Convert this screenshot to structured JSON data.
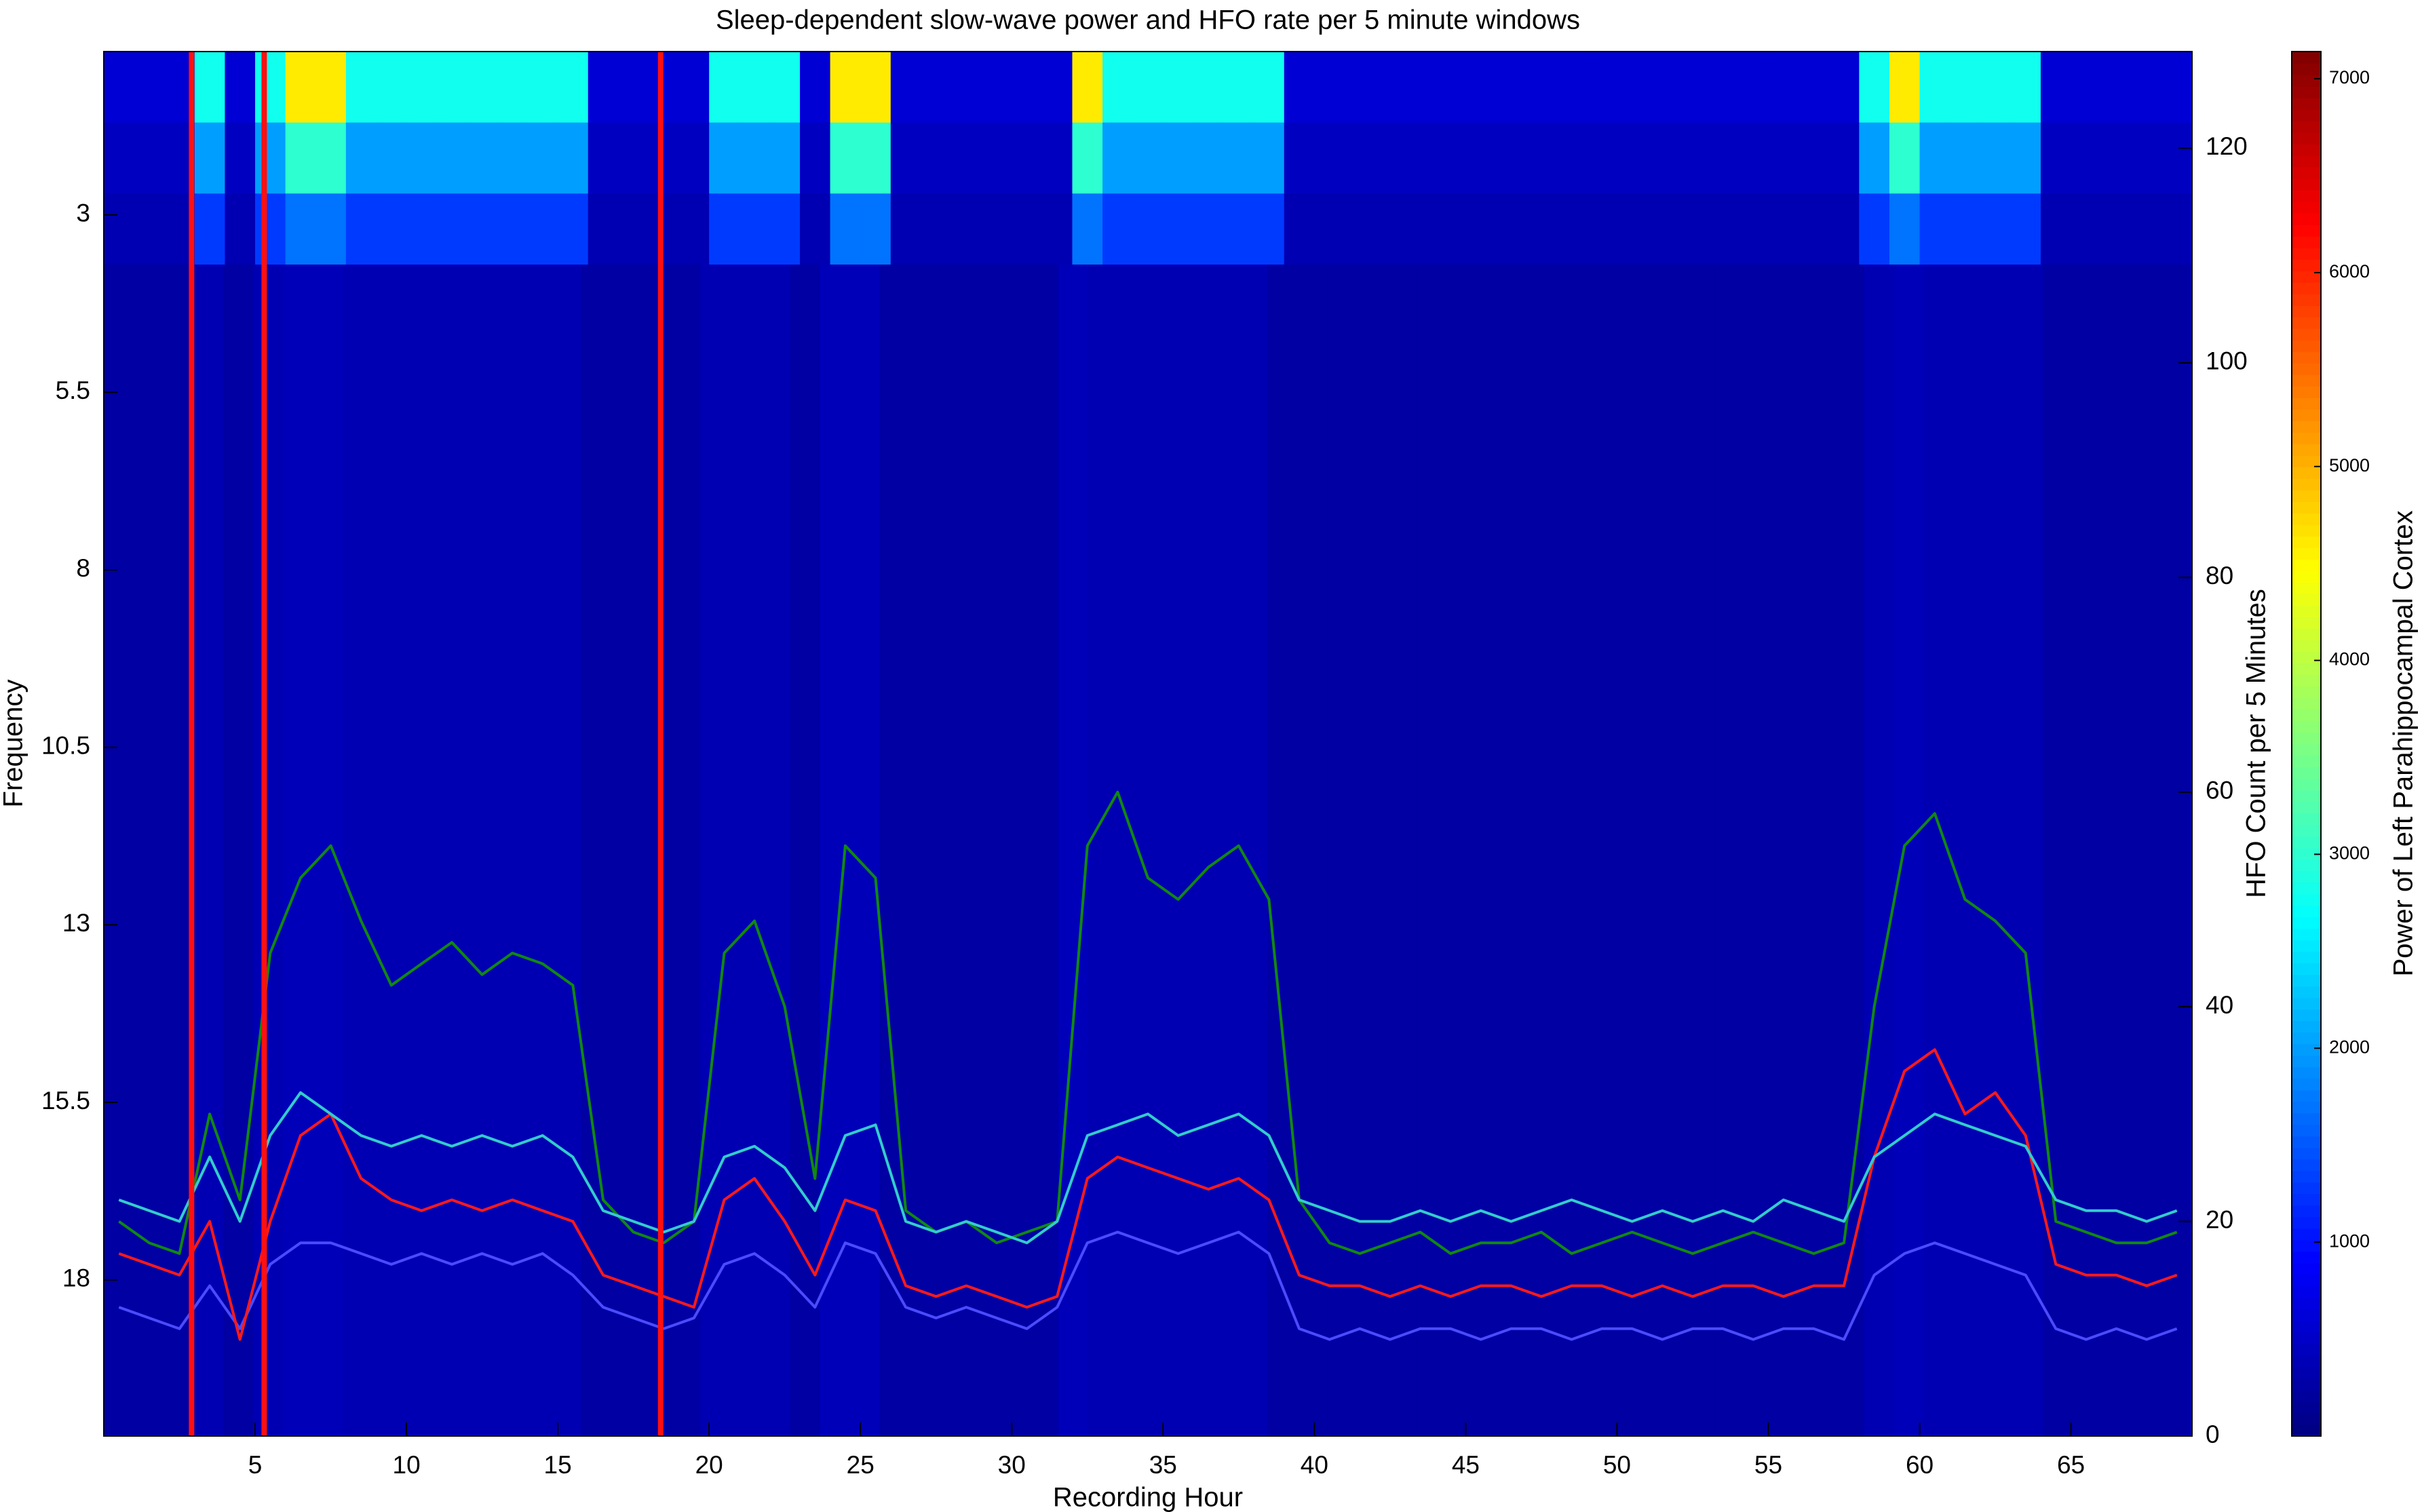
{
  "chart_data": {
    "type": "heatmap",
    "title": "Sleep-dependent slow-wave power and HFO rate per 5 minute windows",
    "xlabel": "Recording Hour",
    "ylabel": "Frequency",
    "y2label": "HFO Count per 5 Minutes",
    "colorbar_label": "Power of Left Parahippocampal Cortex",
    "colormap": "jet",
    "xlim": [
      0,
      69
    ],
    "xticks": [
      5,
      10,
      15,
      20,
      25,
      30,
      35,
      40,
      45,
      50,
      55,
      60,
      65
    ],
    "ylim": [
      0.7,
      20.2
    ],
    "y_reversed": true,
    "yticks": [
      3,
      5.5,
      8,
      10.5,
      13,
      15.5,
      18
    ],
    "y2lim": [
      0,
      129
    ],
    "y2ticks": [
      0,
      20,
      40,
      60,
      80,
      100,
      120
    ],
    "clim": [
      0,
      7140
    ],
    "cticks": [
      1000,
      2000,
      3000,
      4000,
      5000,
      6000,
      7000
    ],
    "heatmap": {
      "y_edges": [
        0.7,
        1.7,
        2.7,
        3.7,
        20.2
      ],
      "z": [
        [
          600,
          600,
          600,
          2800,
          600,
          2800,
          4600,
          4600,
          2800,
          2800,
          2800,
          2800,
          2800,
          2800,
          2800,
          2800,
          600,
          600,
          600,
          600,
          2800,
          2800,
          2800,
          600,
          4600,
          4600,
          600,
          600,
          600,
          600,
          600,
          600,
          4600,
          2800,
          2800,
          2800,
          2800,
          2800,
          2800,
          600,
          600,
          600,
          600,
          600,
          600,
          600,
          600,
          600,
          600,
          600,
          600,
          600,
          600,
          600,
          600,
          600,
          600,
          600,
          2800,
          4600,
          2800,
          2800,
          2800,
          2800,
          600,
          600,
          600,
          600,
          600
        ],
        [
          450,
          450,
          450,
          2000,
          450,
          2000,
          3000,
          3000,
          2000,
          2000,
          2000,
          2000,
          2000,
          2000,
          2000,
          2000,
          450,
          450,
          450,
          450,
          2000,
          2000,
          2000,
          450,
          3000,
          3000,
          450,
          450,
          450,
          450,
          450,
          450,
          3000,
          2000,
          2000,
          2000,
          2000,
          2000,
          2000,
          450,
          450,
          450,
          450,
          450,
          450,
          450,
          450,
          450,
          450,
          450,
          450,
          450,
          450,
          450,
          450,
          450,
          450,
          450,
          2000,
          3000,
          2000,
          2000,
          2000,
          2000,
          450,
          450,
          450,
          450,
          450
        ],
        [
          350,
          350,
          350,
          1300,
          350,
          1300,
          1700,
          1700,
          1300,
          1300,
          1300,
          1300,
          1300,
          1300,
          1300,
          1300,
          350,
          350,
          350,
          350,
          1300,
          1300,
          1300,
          350,
          1700,
          1700,
          350,
          350,
          350,
          350,
          350,
          350,
          1700,
          1300,
          1300,
          1300,
          1300,
          1300,
          1300,
          350,
          350,
          350,
          350,
          350,
          350,
          350,
          350,
          350,
          350,
          350,
          350,
          350,
          350,
          350,
          350,
          350,
          350,
          350,
          1300,
          1700,
          1300,
          1300,
          1300,
          1300,
          350,
          350,
          350,
          350,
          350
        ],
        [
          250,
          250,
          250,
          350,
          250,
          350,
          400,
          400,
          350,
          350,
          350,
          350,
          350,
          350,
          350,
          350,
          250,
          250,
          250,
          250,
          350,
          350,
          350,
          250,
          400,
          400,
          250,
          250,
          250,
          250,
          250,
          250,
          400,
          350,
          350,
          350,
          350,
          350,
          350,
          250,
          250,
          250,
          250,
          250,
          250,
          250,
          250,
          250,
          250,
          250,
          250,
          250,
          250,
          250,
          250,
          250,
          250,
          250,
          250,
          350,
          400,
          350,
          350,
          350,
          350,
          250,
          250,
          250,
          250,
          250
        ]
      ]
    },
    "vlines": [
      2.9,
      5.3,
      18.4
    ],
    "vline_color": "#ff1010",
    "x": [
      0.5,
      1.5,
      2.5,
      3.5,
      4.5,
      5.5,
      6.5,
      7.5,
      8.5,
      9.5,
      10.5,
      11.5,
      12.5,
      13.5,
      14.5,
      15.5,
      16.5,
      17.5,
      18.5,
      19.5,
      20.5,
      21.5,
      22.5,
      23.5,
      24.5,
      25.5,
      26.5,
      27.5,
      28.5,
      29.5,
      30.5,
      31.5,
      32.5,
      33.5,
      34.5,
      35.5,
      36.5,
      37.5,
      38.5,
      39.5,
      40.5,
      41.5,
      42.5,
      43.5,
      44.5,
      45.5,
      46.5,
      47.5,
      48.5,
      49.5,
      50.5,
      51.5,
      52.5,
      53.5,
      54.5,
      55.5,
      56.5,
      57.5,
      58.5,
      59.5,
      60.5,
      61.5,
      62.5,
      63.5,
      64.5,
      65.5,
      66.5,
      67.5,
      68.5
    ],
    "series": [
      {
        "color": "#4b4bff",
        "axis": "y2",
        "values": [
          12,
          11,
          10,
          14,
          10,
          16,
          18,
          18,
          17,
          16,
          17,
          16,
          17,
          16,
          17,
          15,
          12,
          11,
          10,
          11,
          16,
          17,
          15,
          12,
          18,
          17,
          12,
          11,
          12,
          11,
          10,
          12,
          18,
          19,
          18,
          17,
          18,
          19,
          17,
          10,
          9,
          10,
          9,
          10,
          10,
          9,
          10,
          10,
          9,
          10,
          10,
          9,
          10,
          10,
          9,
          10,
          10,
          9,
          15,
          17,
          18,
          17,
          16,
          15,
          10,
          9,
          10,
          9,
          10
        ]
      },
      {
        "color": "#ff1a1a",
        "axis": "y2",
        "values": [
          17,
          16,
          15,
          20,
          9,
          20,
          28,
          30,
          24,
          22,
          21,
          22,
          21,
          22,
          21,
          20,
          15,
          14,
          13,
          12,
          22,
          24,
          20,
          15,
          22,
          21,
          14,
          13,
          14,
          13,
          12,
          13,
          24,
          26,
          25,
          24,
          23,
          24,
          22,
          15,
          14,
          14,
          13,
          14,
          13,
          14,
          14,
          13,
          14,
          14,
          13,
          14,
          13,
          14,
          14,
          13,
          14,
          14,
          26,
          34,
          36,
          30,
          32,
          28,
          16,
          15,
          15,
          14,
          15
        ]
      },
      {
        "color": "#118811",
        "axis": "y2",
        "values": [
          20,
          18,
          17,
          30,
          22,
          45,
          52,
          55,
          48,
          42,
          44,
          46,
          43,
          45,
          44,
          42,
          22,
          19,
          18,
          20,
          45,
          48,
          40,
          24,
          55,
          52,
          21,
          19,
          20,
          18,
          19,
          20,
          55,
          60,
          52,
          50,
          53,
          55,
          50,
          22,
          18,
          17,
          18,
          19,
          17,
          18,
          18,
          19,
          17,
          18,
          19,
          18,
          17,
          18,
          19,
          18,
          17,
          18,
          40,
          55,
          58,
          50,
          48,
          45,
          20,
          19,
          18,
          18,
          19
        ]
      },
      {
        "color": "#33cccc",
        "axis": "y2",
        "values": [
          22,
          21,
          20,
          26,
          20,
          28,
          32,
          30,
          28,
          27,
          28,
          27,
          28,
          27,
          28,
          26,
          21,
          20,
          19,
          20,
          26,
          27,
          25,
          21,
          28,
          29,
          20,
          19,
          20,
          19,
          18,
          20,
          28,
          29,
          30,
          28,
          29,
          30,
          28,
          22,
          21,
          20,
          20,
          21,
          20,
          21,
          20,
          21,
          22,
          21,
          20,
          21,
          20,
          21,
          20,
          22,
          21,
          20,
          26,
          28,
          30,
          29,
          28,
          27,
          22,
          21,
          21,
          20,
          21
        ]
      }
    ]
  }
}
